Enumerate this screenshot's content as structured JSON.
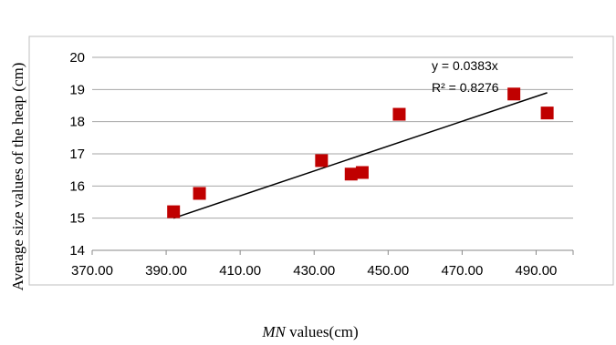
{
  "chart_data": {
    "type": "scatter",
    "title": "",
    "xlabel_italic": "MN",
    "xlabel_rest": " values(cm)",
    "ylabel": "Average size values of the heap (cm)",
    "xlim": [
      370,
      500
    ],
    "ylim": [
      14,
      20
    ],
    "x_ticks": [
      "370.00",
      "390.00",
      "410.00",
      "430.00",
      "450.00",
      "470.00",
      "490.00"
    ],
    "y_ticks": [
      "14",
      "15",
      "16",
      "17",
      "18",
      "19",
      "20"
    ],
    "grid": true,
    "marker_color": "#c00000",
    "points": [
      {
        "x": 392,
        "y": 15.2
      },
      {
        "x": 399,
        "y": 15.77
      },
      {
        "x": 432,
        "y": 16.79
      },
      {
        "x": 440,
        "y": 16.37
      },
      {
        "x": 443,
        "y": 16.42
      },
      {
        "x": 453,
        "y": 18.23
      },
      {
        "x": 484,
        "y": 18.86
      },
      {
        "x": 493,
        "y": 18.27
      }
    ],
    "trendline": {
      "x": [
        392,
        493
      ],
      "y": [
        15.0,
        18.9
      ]
    },
    "equation": "y = 0.0383x",
    "r_squared": "R² = 0.8276"
  }
}
